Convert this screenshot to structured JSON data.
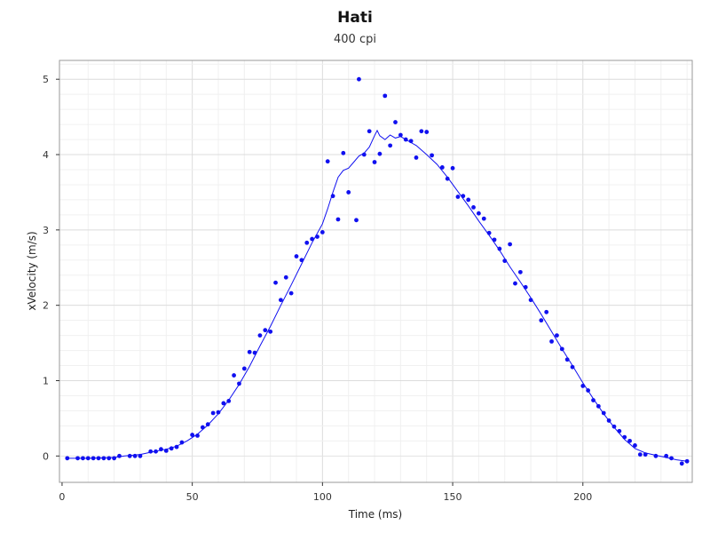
{
  "chart_data": {
    "type": "scatter",
    "title": "Hati",
    "subtitle": "400 cpi",
    "xlabel": "Time (ms)",
    "ylabel": "xVelocity (m/s)",
    "xlim": [
      -1,
      242
    ],
    "ylim": [
      -0.35,
      5.25
    ],
    "xticks": [
      0,
      50,
      100,
      150,
      200
    ],
    "yticks": [
      0,
      1,
      2,
      3,
      4,
      5
    ],
    "grid": true,
    "colors": {
      "series": "#1010f0",
      "grid": "#e6e6e6",
      "axis": "#333333"
    },
    "series": [
      {
        "type": "scatter",
        "points": [
          [
            2,
            -0.03
          ],
          [
            6,
            -0.03
          ],
          [
            8,
            -0.03
          ],
          [
            10,
            -0.03
          ],
          [
            12,
            -0.03
          ],
          [
            14,
            -0.03
          ],
          [
            16,
            -0.03
          ],
          [
            18,
            -0.03
          ],
          [
            20,
            -0.03
          ],
          [
            22,
            0.0
          ],
          [
            26,
            0.0
          ],
          [
            28,
            0.0
          ],
          [
            30,
            0.0
          ],
          [
            34,
            0.06
          ],
          [
            36,
            0.06
          ],
          [
            38,
            0.09
          ],
          [
            40,
            0.07
          ],
          [
            42,
            0.1
          ],
          [
            44,
            0.12
          ],
          [
            46,
            0.18
          ],
          [
            50,
            0.28
          ],
          [
            52,
            0.27
          ],
          [
            54,
            0.38
          ],
          [
            56,
            0.42
          ],
          [
            58,
            0.57
          ],
          [
            60,
            0.58
          ],
          [
            62,
            0.7
          ],
          [
            64,
            0.73
          ],
          [
            66,
            1.07
          ],
          [
            68,
            0.96
          ],
          [
            70,
            1.16
          ],
          [
            72,
            1.38
          ],
          [
            74,
            1.37
          ],
          [
            76,
            1.6
          ],
          [
            78,
            1.67
          ],
          [
            80,
            1.65
          ],
          [
            82,
            2.3
          ],
          [
            84,
            2.07
          ],
          [
            86,
            2.37
          ],
          [
            88,
            2.16
          ],
          [
            90,
            2.65
          ],
          [
            92,
            2.6
          ],
          [
            94,
            2.83
          ],
          [
            96,
            2.88
          ],
          [
            98,
            2.91
          ],
          [
            100,
            2.97
          ],
          [
            102,
            3.91
          ],
          [
            104,
            3.45
          ],
          [
            106,
            3.14
          ],
          [
            108,
            4.02
          ],
          [
            110,
            3.5
          ],
          [
            113,
            3.13
          ],
          [
            114,
            5.0
          ],
          [
            116,
            4.0
          ],
          [
            118,
            4.31
          ],
          [
            120,
            3.9
          ],
          [
            122,
            4.01
          ],
          [
            124,
            4.78
          ],
          [
            126,
            4.12
          ],
          [
            128,
            4.43
          ],
          [
            130,
            4.26
          ],
          [
            132,
            4.2
          ],
          [
            134,
            4.18
          ],
          [
            136,
            3.96
          ],
          [
            138,
            4.31
          ],
          [
            140,
            4.3
          ],
          [
            142,
            3.99
          ],
          [
            146,
            3.83
          ],
          [
            148,
            3.68
          ],
          [
            150,
            3.82
          ],
          [
            152,
            3.44
          ],
          [
            154,
            3.45
          ],
          [
            156,
            3.4
          ],
          [
            158,
            3.3
          ],
          [
            160,
            3.22
          ],
          [
            162,
            3.15
          ],
          [
            164,
            2.96
          ],
          [
            166,
            2.87
          ],
          [
            168,
            2.75
          ],
          [
            170,
            2.59
          ],
          [
            172,
            2.81
          ],
          [
            174,
            2.29
          ],
          [
            176,
            2.44
          ],
          [
            178,
            2.24
          ],
          [
            180,
            2.07
          ],
          [
            184,
            1.8
          ],
          [
            186,
            1.91
          ],
          [
            188,
            1.52
          ],
          [
            190,
            1.6
          ],
          [
            192,
            1.42
          ],
          [
            194,
            1.28
          ],
          [
            196,
            1.18
          ],
          [
            200,
            0.93
          ],
          [
            202,
            0.87
          ],
          [
            204,
            0.74
          ],
          [
            206,
            0.66
          ],
          [
            208,
            0.57
          ],
          [
            210,
            0.47
          ],
          [
            212,
            0.39
          ],
          [
            214,
            0.33
          ],
          [
            216,
            0.25
          ],
          [
            218,
            0.2
          ],
          [
            220,
            0.14
          ],
          [
            222,
            0.02
          ],
          [
            224,
            0.02
          ],
          [
            228,
            0.0
          ],
          [
            232,
            0.0
          ],
          [
            234,
            -0.03
          ],
          [
            238,
            -0.1
          ],
          [
            240,
            -0.07
          ]
        ]
      },
      {
        "type": "line",
        "points": [
          [
            2,
            -0.03
          ],
          [
            10,
            -0.03
          ],
          [
            20,
            -0.02
          ],
          [
            24,
            0.0
          ],
          [
            30,
            0.02
          ],
          [
            34,
            0.05
          ],
          [
            40,
            0.09
          ],
          [
            44,
            0.13
          ],
          [
            48,
            0.2
          ],
          [
            52,
            0.29
          ],
          [
            56,
            0.41
          ],
          [
            60,
            0.56
          ],
          [
            64,
            0.74
          ],
          [
            68,
            0.95
          ],
          [
            72,
            1.19
          ],
          [
            76,
            1.46
          ],
          [
            80,
            1.72
          ],
          [
            84,
            2.0
          ],
          [
            88,
            2.27
          ],
          [
            92,
            2.55
          ],
          [
            96,
            2.83
          ],
          [
            100,
            3.08
          ],
          [
            102,
            3.28
          ],
          [
            104,
            3.5
          ],
          [
            106,
            3.7
          ],
          [
            108,
            3.79
          ],
          [
            110,
            3.82
          ],
          [
            112,
            3.9
          ],
          [
            114,
            3.98
          ],
          [
            116,
            4.02
          ],
          [
            118,
            4.1
          ],
          [
            120,
            4.25
          ],
          [
            121,
            4.32
          ],
          [
            122,
            4.25
          ],
          [
            124,
            4.2
          ],
          [
            126,
            4.26
          ],
          [
            128,
            4.22
          ],
          [
            130,
            4.24
          ],
          [
            132,
            4.2
          ],
          [
            134,
            4.16
          ],
          [
            136,
            4.12
          ],
          [
            140,
            4.0
          ],
          [
            144,
            3.87
          ],
          [
            148,
            3.7
          ],
          [
            152,
            3.51
          ],
          [
            156,
            3.32
          ],
          [
            160,
            3.12
          ],
          [
            164,
            2.93
          ],
          [
            168,
            2.73
          ],
          [
            172,
            2.51
          ],
          [
            176,
            2.31
          ],
          [
            180,
            2.1
          ],
          [
            184,
            1.88
          ],
          [
            188,
            1.65
          ],
          [
            192,
            1.42
          ],
          [
            196,
            1.2
          ],
          [
            200,
            0.97
          ],
          [
            204,
            0.76
          ],
          [
            208,
            0.56
          ],
          [
            212,
            0.38
          ],
          [
            216,
            0.22
          ],
          [
            220,
            0.1
          ],
          [
            224,
            0.04
          ],
          [
            228,
            0.01
          ],
          [
            232,
            -0.02
          ],
          [
            236,
            -0.05
          ],
          [
            240,
            -0.07
          ]
        ]
      }
    ]
  }
}
